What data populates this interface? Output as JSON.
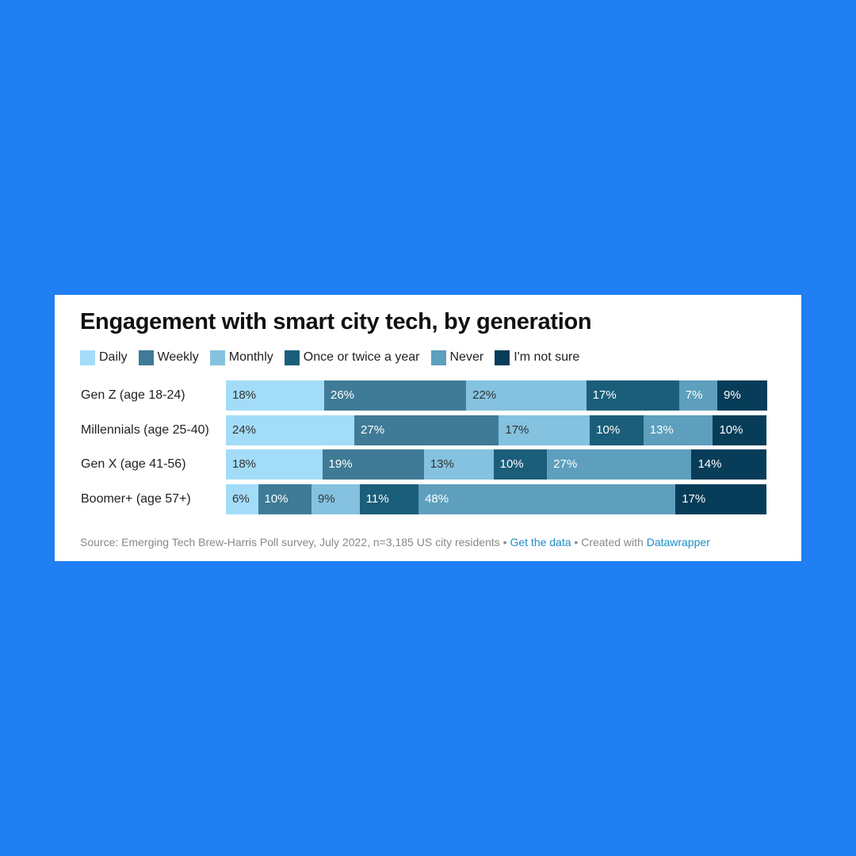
{
  "chart_data": {
    "type": "bar",
    "orientation": "horizontal",
    "stacked": true,
    "title": "Engagement with smart city tech, by generation",
    "legend_position": "top",
    "categories": [
      "Gen Z (age 18-24)",
      "Millennials (age 25-40)",
      "Gen X (age 41-56)",
      "Boomer+ (age 57+)"
    ],
    "series": [
      {
        "name": "Daily",
        "color": "#a3dcf8",
        "label_color": "#333333",
        "values": [
          18,
          24,
          18,
          6
        ]
      },
      {
        "name": "Weekly",
        "color": "#3f7b97",
        "label_color": "#ffffff",
        "values": [
          26,
          27,
          19,
          10
        ]
      },
      {
        "name": "Monthly",
        "color": "#84c2e0",
        "label_color": "#333333",
        "values": [
          22,
          17,
          13,
          9
        ]
      },
      {
        "name": "Once or twice a year",
        "color": "#1b5e7a",
        "label_color": "#ffffff",
        "values": [
          17,
          10,
          10,
          11
        ]
      },
      {
        "name": "Never",
        "color": "#5e9fbe",
        "label_color": "#ffffff",
        "values": [
          7,
          13,
          27,
          48
        ]
      },
      {
        "name": "I'm not sure",
        "color": "#073d59",
        "label_color": "#ffffff",
        "values": [
          9,
          10,
          14,
          17
        ]
      }
    ],
    "value_suffix": "%"
  },
  "footer": {
    "source": "Source: Emerging Tech Brew-Harris Poll survey, July 2022, n=3,185 US city residents",
    "sep1": " • ",
    "get_data": "Get the data",
    "sep2": " • Created with ",
    "datawrapper": "Datawrapper"
  }
}
